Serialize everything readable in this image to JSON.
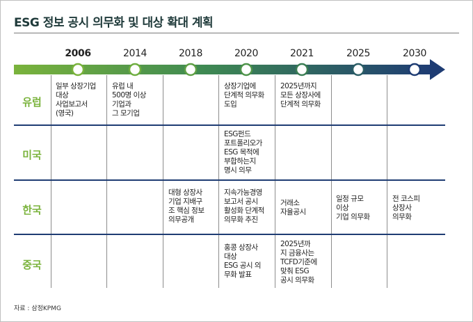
{
  "title": "ESG 정보 공시 의무화 및 대상 확대 계획",
  "colors": {
    "green": "#7ab33c",
    "navy": "#1e3c73"
  },
  "years": [
    "2006",
    "2014",
    "2018",
    "2020",
    "2021",
    "2025",
    "2030"
  ],
  "regions": {
    "eu": "유럽",
    "us": "미국",
    "kr": "한국",
    "cn": "중국"
  },
  "cells": {
    "eu_2006": "일부 상장기업\n대상\n사업보고서\n(영국)",
    "eu_2014": "유럽 내\n500명 이상\n기업과\n그 모기업",
    "eu_2020": "상장기업에\n단계적 의무화\n도입",
    "eu_2021": "2025년까지\n모든 상장사에\n단계적 의무화",
    "us_2020": "ESG펀드\n포트폴리오가\nESG 목적에\n부합하는지\n명시 의무",
    "kr_2018": "대형 상장사\n기업 지배구\n조 핵심 정보\n의무공개",
    "kr_2020": "지속가능경영\n보고서 공시\n활성화 단계적\n의무화 추진",
    "kr_2021": "거래소\n자율공시",
    "kr_2025": "일정 규모\n이상\n기업 의무화",
    "kr_2030": "전 코스피\n상장사\n의무화",
    "cn_2020": "홍콩 상장사\n대상\nESG 공시 의\n무화 발표",
    "cn_2021": "2025년까\n지 금융사는\nTCFD기준에\n맞춰 ESG\n공시 의무화"
  },
  "source": "자료 : 삼정KPMG"
}
